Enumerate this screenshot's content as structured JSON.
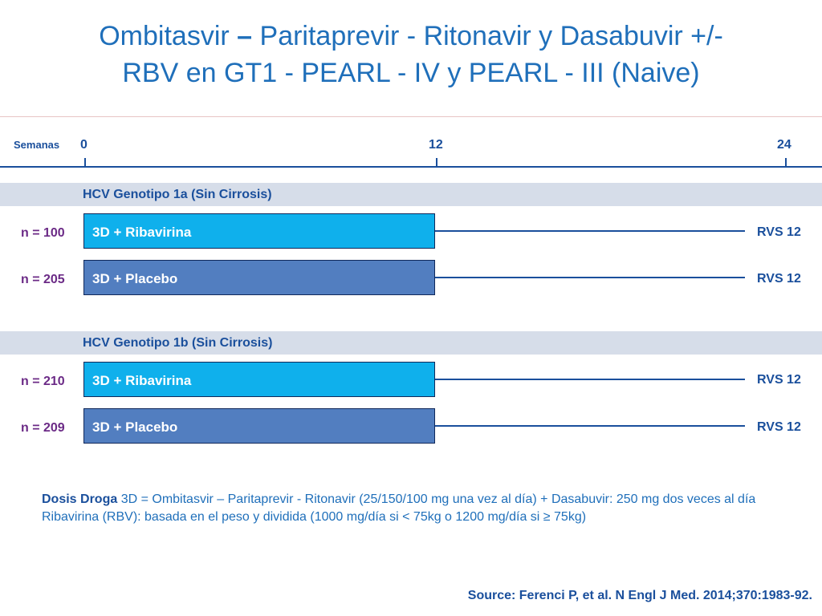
{
  "title": {
    "line1_part1": "Ombitasvir ",
    "line1_dash": "–",
    "line1_part2": " Paritaprevir - Ritonavir y Dasabuvir +/-",
    "line2": "RBV en GT1 - PEARL - IV y PEARL - III (Naive)"
  },
  "timeline": {
    "label": "Semanas",
    "ticks": [
      {
        "label": "0",
        "week": 0
      },
      {
        "label": "12",
        "week": 12
      },
      {
        "label": "24",
        "week": 24
      }
    ]
  },
  "groups": [
    {
      "label": "HCV Genotipo 1a  (Sin Cirrosis)",
      "arms": [
        {
          "n": "n = 100",
          "label": "3D + Ribavirina",
          "type": "ribavirina",
          "treatment_weeks": 12,
          "outcome": "RVS 12"
        },
        {
          "n": "n = 205",
          "label": "3D + Placebo",
          "type": "placebo",
          "treatment_weeks": 12,
          "outcome": "RVS 12"
        }
      ]
    },
    {
      "label": "HCV Genotipo 1b (Sin Cirrosis)",
      "arms": [
        {
          "n": "n = 210",
          "label": "3D + Ribavirina",
          "type": "ribavirina",
          "treatment_weeks": 12,
          "outcome": "RVS 12"
        },
        {
          "n": "n = 209",
          "label": "3D + Placebo",
          "type": "placebo",
          "treatment_weeks": 12,
          "outcome": "RVS 12"
        }
      ]
    }
  ],
  "dosis": {
    "label": "Dosis Droga",
    "text1": " 3D = Ombitasvir – Paritaprevir - Ritonavir (25/150/100 mg una vez al día) + Dasabuvir: 250 mg dos veces al día",
    "text2": "Ribavirina (RBV): basada en el peso y dividida (1000 mg/día si < 75kg o 1200 mg/día si ≥ 75kg)"
  },
  "source": "Source: Ferenci P, et al. N Engl J Med. 2014;370:1983-92.",
  "colors": {
    "title": "#1f6fba",
    "ribavirina_bar": "#0fb0ec",
    "placebo_bar": "#527ec0",
    "n_label": "#6b2a86",
    "band": "#d6dde9"
  }
}
